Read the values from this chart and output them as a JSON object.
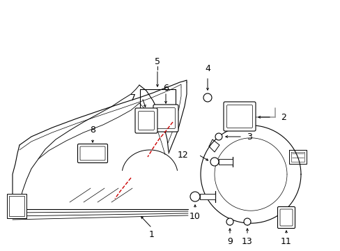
{
  "bg_color": "#ffffff",
  "lc": "#000000",
  "rc": "#cc0000",
  "gc": "#999999",
  "figsize": [
    4.89,
    3.6
  ],
  "dpi": 100
}
